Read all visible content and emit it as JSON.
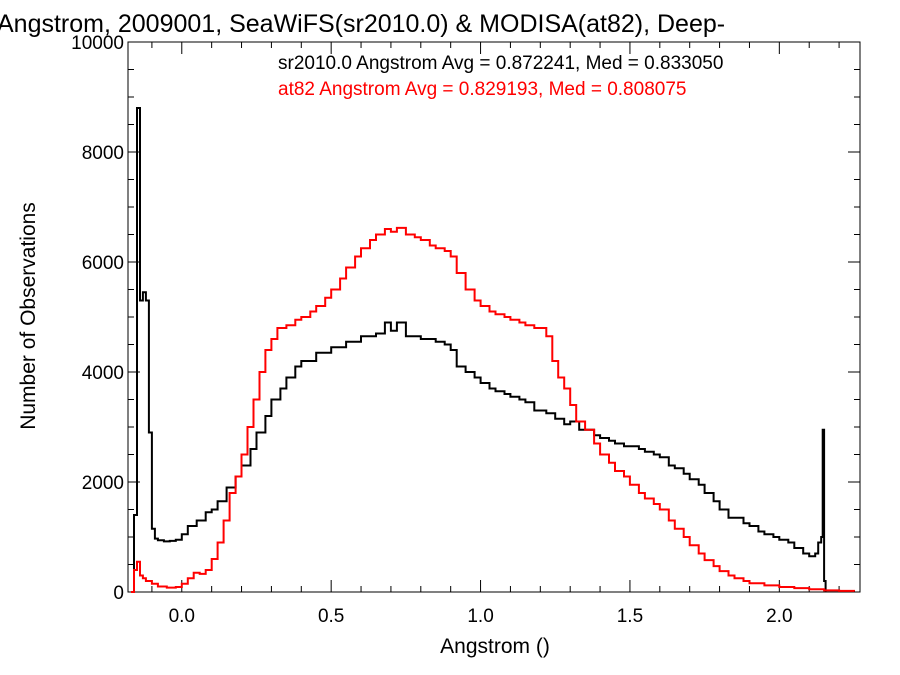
{
  "chart_data": {
    "type": "line",
    "title": "Angstrom, 2009001, SeaWiFS(sr2010.0) & MODISA(at82), Deep-",
    "xlabel": "Angstrom ()",
    "ylabel": "Number of Observations",
    "xlim": [
      -0.18,
      2.27
    ],
    "ylim": [
      0,
      10000
    ],
    "x_ticks": [
      0.0,
      0.5,
      1.0,
      1.5,
      2.0
    ],
    "x_tick_labels": [
      "0.0",
      "0.5",
      "1.0",
      "1.5",
      "2.0"
    ],
    "y_ticks": [
      0,
      2000,
      4000,
      6000,
      8000,
      10000
    ],
    "y_tick_labels": [
      "0",
      "2000",
      "4000",
      "6000",
      "8000",
      "10000"
    ],
    "step": "histogram",
    "grid": false,
    "series": [
      {
        "name": "sr2010.0",
        "color": "#000000",
        "annotation": "sr2010.0 Angstrom Avg = 0.872241, Med = 0.833050",
        "points": [
          [
            -0.17,
            0
          ],
          [
            -0.16,
            1400
          ],
          [
            -0.15,
            8800
          ],
          [
            -0.14,
            5300
          ],
          [
            -0.13,
            5450
          ],
          [
            -0.12,
            5300
          ],
          [
            -0.11,
            2900
          ],
          [
            -0.1,
            1150
          ],
          [
            -0.09,
            970
          ],
          [
            -0.08,
            940
          ],
          [
            -0.06,
            920
          ],
          [
            -0.04,
            930
          ],
          [
            -0.02,
            950
          ],
          [
            0.0,
            1050
          ],
          [
            0.02,
            1200
          ],
          [
            0.05,
            1300
          ],
          [
            0.08,
            1450
          ],
          [
            0.1,
            1500
          ],
          [
            0.12,
            1650
          ],
          [
            0.15,
            1900
          ],
          [
            0.18,
            2100
          ],
          [
            0.2,
            2300
          ],
          [
            0.23,
            2600
          ],
          [
            0.25,
            2900
          ],
          [
            0.28,
            3200
          ],
          [
            0.3,
            3500
          ],
          [
            0.33,
            3700
          ],
          [
            0.35,
            3900
          ],
          [
            0.38,
            4100
          ],
          [
            0.4,
            4200
          ],
          [
            0.45,
            4350
          ],
          [
            0.5,
            4450
          ],
          [
            0.55,
            4550
          ],
          [
            0.6,
            4650
          ],
          [
            0.65,
            4700
          ],
          [
            0.68,
            4900
          ],
          [
            0.7,
            4750
          ],
          [
            0.72,
            4900
          ],
          [
            0.75,
            4650
          ],
          [
            0.8,
            4600
          ],
          [
            0.85,
            4550
          ],
          [
            0.88,
            4500
          ],
          [
            0.9,
            4400
          ],
          [
            0.92,
            4100
          ],
          [
            0.95,
            4000
          ],
          [
            0.98,
            3900
          ],
          [
            1.0,
            3800
          ],
          [
            1.03,
            3700
          ],
          [
            1.05,
            3650
          ],
          [
            1.08,
            3600
          ],
          [
            1.1,
            3550
          ],
          [
            1.13,
            3500
          ],
          [
            1.15,
            3450
          ],
          [
            1.18,
            3300
          ],
          [
            1.2,
            3300
          ],
          [
            1.22,
            3250
          ],
          [
            1.25,
            3150
          ],
          [
            1.28,
            3050
          ],
          [
            1.3,
            3100
          ],
          [
            1.33,
            2950
          ],
          [
            1.35,
            2950
          ],
          [
            1.38,
            2850
          ],
          [
            1.4,
            2800
          ],
          [
            1.43,
            2750
          ],
          [
            1.45,
            2700
          ],
          [
            1.48,
            2650
          ],
          [
            1.5,
            2650
          ],
          [
            1.53,
            2600
          ],
          [
            1.55,
            2550
          ],
          [
            1.58,
            2500
          ],
          [
            1.6,
            2450
          ],
          [
            1.63,
            2300
          ],
          [
            1.65,
            2250
          ],
          [
            1.68,
            2150
          ],
          [
            1.7,
            2050
          ],
          [
            1.73,
            1950
          ],
          [
            1.75,
            1800
          ],
          [
            1.78,
            1650
          ],
          [
            1.8,
            1500
          ],
          [
            1.83,
            1350
          ],
          [
            1.85,
            1350
          ],
          [
            1.88,
            1250
          ],
          [
            1.9,
            1200
          ],
          [
            1.93,
            1100
          ],
          [
            1.95,
            1050
          ],
          [
            1.98,
            1000
          ],
          [
            2.0,
            950
          ],
          [
            2.03,
            900
          ],
          [
            2.05,
            800
          ],
          [
            2.08,
            700
          ],
          [
            2.1,
            650
          ],
          [
            2.12,
            700
          ],
          [
            2.13,
            900
          ],
          [
            2.14,
            1000
          ],
          [
            2.145,
            2950
          ],
          [
            2.15,
            200
          ],
          [
            2.155,
            0
          ]
        ]
      },
      {
        "name": "at82",
        "color": "#ff0000",
        "annotation": "at82 Angstrom Avg = 0.829193, Med = 0.808075",
        "points": [
          [
            -0.17,
            0
          ],
          [
            -0.16,
            400
          ],
          [
            -0.15,
            550
          ],
          [
            -0.14,
            300
          ],
          [
            -0.13,
            250
          ],
          [
            -0.12,
            200
          ],
          [
            -0.1,
            150
          ],
          [
            -0.08,
            100
          ],
          [
            -0.05,
            80
          ],
          [
            -0.02,
            90
          ],
          [
            0.0,
            150
          ],
          [
            0.02,
            250
          ],
          [
            0.04,
            350
          ],
          [
            0.06,
            330
          ],
          [
            0.08,
            400
          ],
          [
            0.1,
            600
          ],
          [
            0.12,
            900
          ],
          [
            0.14,
            1300
          ],
          [
            0.16,
            1800
          ],
          [
            0.18,
            2100
          ],
          [
            0.2,
            2500
          ],
          [
            0.22,
            3000
          ],
          [
            0.24,
            3500
          ],
          [
            0.26,
            4000
          ],
          [
            0.28,
            4400
          ],
          [
            0.3,
            4600
          ],
          [
            0.32,
            4800
          ],
          [
            0.35,
            4850
          ],
          [
            0.38,
            4950
          ],
          [
            0.4,
            5000
          ],
          [
            0.43,
            5100
          ],
          [
            0.45,
            5200
          ],
          [
            0.48,
            5350
          ],
          [
            0.5,
            5500
          ],
          [
            0.53,
            5700
          ],
          [
            0.55,
            5900
          ],
          [
            0.58,
            6100
          ],
          [
            0.6,
            6250
          ],
          [
            0.63,
            6400
          ],
          [
            0.65,
            6500
          ],
          [
            0.68,
            6600
          ],
          [
            0.7,
            6550
          ],
          [
            0.72,
            6620
          ],
          [
            0.75,
            6500
          ],
          [
            0.78,
            6450
          ],
          [
            0.8,
            6400
          ],
          [
            0.83,
            6300
          ],
          [
            0.85,
            6250
          ],
          [
            0.88,
            6200
          ],
          [
            0.9,
            6100
          ],
          [
            0.92,
            5800
          ],
          [
            0.95,
            5500
          ],
          [
            0.98,
            5300
          ],
          [
            1.0,
            5200
          ],
          [
            1.03,
            5100
          ],
          [
            1.05,
            5050
          ],
          [
            1.08,
            5000
          ],
          [
            1.1,
            4950
          ],
          [
            1.13,
            4900
          ],
          [
            1.15,
            4850
          ],
          [
            1.18,
            4800
          ],
          [
            1.2,
            4800
          ],
          [
            1.22,
            4650
          ],
          [
            1.24,
            4200
          ],
          [
            1.26,
            3900
          ],
          [
            1.28,
            3700
          ],
          [
            1.3,
            3400
          ],
          [
            1.32,
            3100
          ],
          [
            1.35,
            2950
          ],
          [
            1.38,
            2700
          ],
          [
            1.4,
            2500
          ],
          [
            1.43,
            2350
          ],
          [
            1.45,
            2200
          ],
          [
            1.48,
            2100
          ],
          [
            1.5,
            1950
          ],
          [
            1.53,
            1800
          ],
          [
            1.55,
            1700
          ],
          [
            1.58,
            1600
          ],
          [
            1.6,
            1500
          ],
          [
            1.63,
            1300
          ],
          [
            1.65,
            1150
          ],
          [
            1.68,
            1000
          ],
          [
            1.7,
            850
          ],
          [
            1.73,
            700
          ],
          [
            1.75,
            580
          ],
          [
            1.78,
            470
          ],
          [
            1.8,
            380
          ],
          [
            1.83,
            300
          ],
          [
            1.85,
            250
          ],
          [
            1.88,
            200
          ],
          [
            1.9,
            160
          ],
          [
            1.95,
            120
          ],
          [
            2.0,
            90
          ],
          [
            2.05,
            70
          ],
          [
            2.1,
            50
          ],
          [
            2.15,
            30
          ],
          [
            2.2,
            20
          ],
          [
            2.25,
            10
          ]
        ]
      }
    ]
  }
}
